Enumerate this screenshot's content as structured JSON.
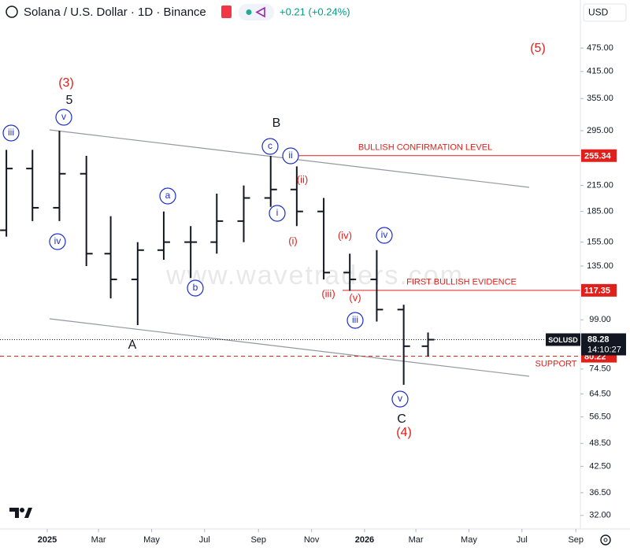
{
  "chart_data": {
    "type": "ohlc",
    "title": "Solana / U.S. Dollar · 1D · Binance",
    "change": "+0.21 (+0.24%)",
    "currency": "USD",
    "symbol": "SOLUSD",
    "countdown": "14:10:27",
    "watermark": "www.wavetraders.com",
    "color": "#131722",
    "log_scale": true,
    "x": [
      "2024-11",
      "2024-12",
      "2025-01",
      "2025-02",
      "2025-03",
      "2025-04",
      "2025-05",
      "2025-06",
      "2025-07",
      "2025-08",
      "2025-09",
      "2025-10",
      "2025-11",
      "2025-12",
      "2026-01",
      "2026-02",
      "2026-03"
    ],
    "open": [
      166,
      237,
      189,
      230,
      145,
      125,
      148,
      155,
      155,
      175,
      200,
      210,
      185,
      130,
      125,
      105,
      85
    ],
    "high": [
      264,
      264,
      295,
      255,
      180,
      155,
      185,
      170,
      205,
      215,
      255,
      240,
      200,
      145,
      148,
      108,
      92
    ],
    "low": [
      160,
      175,
      175,
      135,
      112,
      96,
      140,
      126,
      145,
      155,
      190,
      170,
      125,
      117,
      98,
      68,
      80
    ],
    "close": [
      237,
      189,
      230,
      145,
      125,
      148,
      155,
      155,
      175,
      200,
      210,
      185,
      130,
      125,
      105,
      85,
      88.28
    ],
    "last": 88.28,
    "ylim": [
      29.6,
      627
    ],
    "yticks": [
      {
        "value": 475,
        "label": "475.00"
      },
      {
        "value": 415,
        "label": "415.00"
      },
      {
        "value": 355,
        "label": "355.00"
      },
      {
        "value": 295,
        "label": "295.00"
      },
      {
        "value": 215,
        "label": "215.00"
      },
      {
        "value": 185,
        "label": "185.00"
      },
      {
        "value": 155,
        "label": "155.00"
      },
      {
        "value": 135,
        "label": "135.00"
      },
      {
        "value": 99,
        "label": "99.00"
      },
      {
        "value": 74.5,
        "label": "74.50"
      },
      {
        "value": 64.5,
        "label": "64.50"
      },
      {
        "value": 56.5,
        "label": "56.50"
      },
      {
        "value": 48.5,
        "label": "48.50"
      },
      {
        "value": 42.5,
        "label": "42.50"
      },
      {
        "value": 36.5,
        "label": "36.50"
      },
      {
        "value": 32,
        "label": "32.00"
      }
    ],
    "xticks": [
      {
        "value": "2025-01",
        "label": "2025"
      },
      {
        "value": "2025-03",
        "label": "Mar"
      },
      {
        "value": "2025-05",
        "label": "May"
      },
      {
        "value": "2025-07",
        "label": "Jul"
      },
      {
        "value": "2025-09",
        "label": "Sep"
      },
      {
        "value": "2025-11",
        "label": "Nov"
      },
      {
        "value": "2026-01",
        "label": "2026"
      },
      {
        "value": "2026-03",
        "label": "Mar"
      },
      {
        "value": "2026-05",
        "label": "May"
      },
      {
        "value": "2026-07",
        "label": "Jul"
      },
      {
        "value": "2026-09",
        "label": "Sep"
      }
    ],
    "levels": [
      {
        "label": "BULLISH CONFIRMATION LEVEL",
        "value": 255.34,
        "color": "#e0201b"
      },
      {
        "label": "FIRST BULLISH EVIDENCE",
        "value": 117.35,
        "color": "#e0201b"
      },
      {
        "label": "SUPPORT",
        "value": 80.22,
        "color": "#e0201b"
      }
    ],
    "black_labels": [
      "5",
      "B",
      "A",
      "C"
    ],
    "red_labels": [
      "(3)",
      "(ii)",
      "(i)",
      "(iv)",
      "(iii)",
      "(v)",
      "(4)",
      "(5)"
    ],
    "circled_labels": [
      "iii",
      "v",
      "iv",
      "a",
      "b",
      "c",
      "ii",
      "i",
      "iv",
      "iii",
      "v"
    ]
  }
}
